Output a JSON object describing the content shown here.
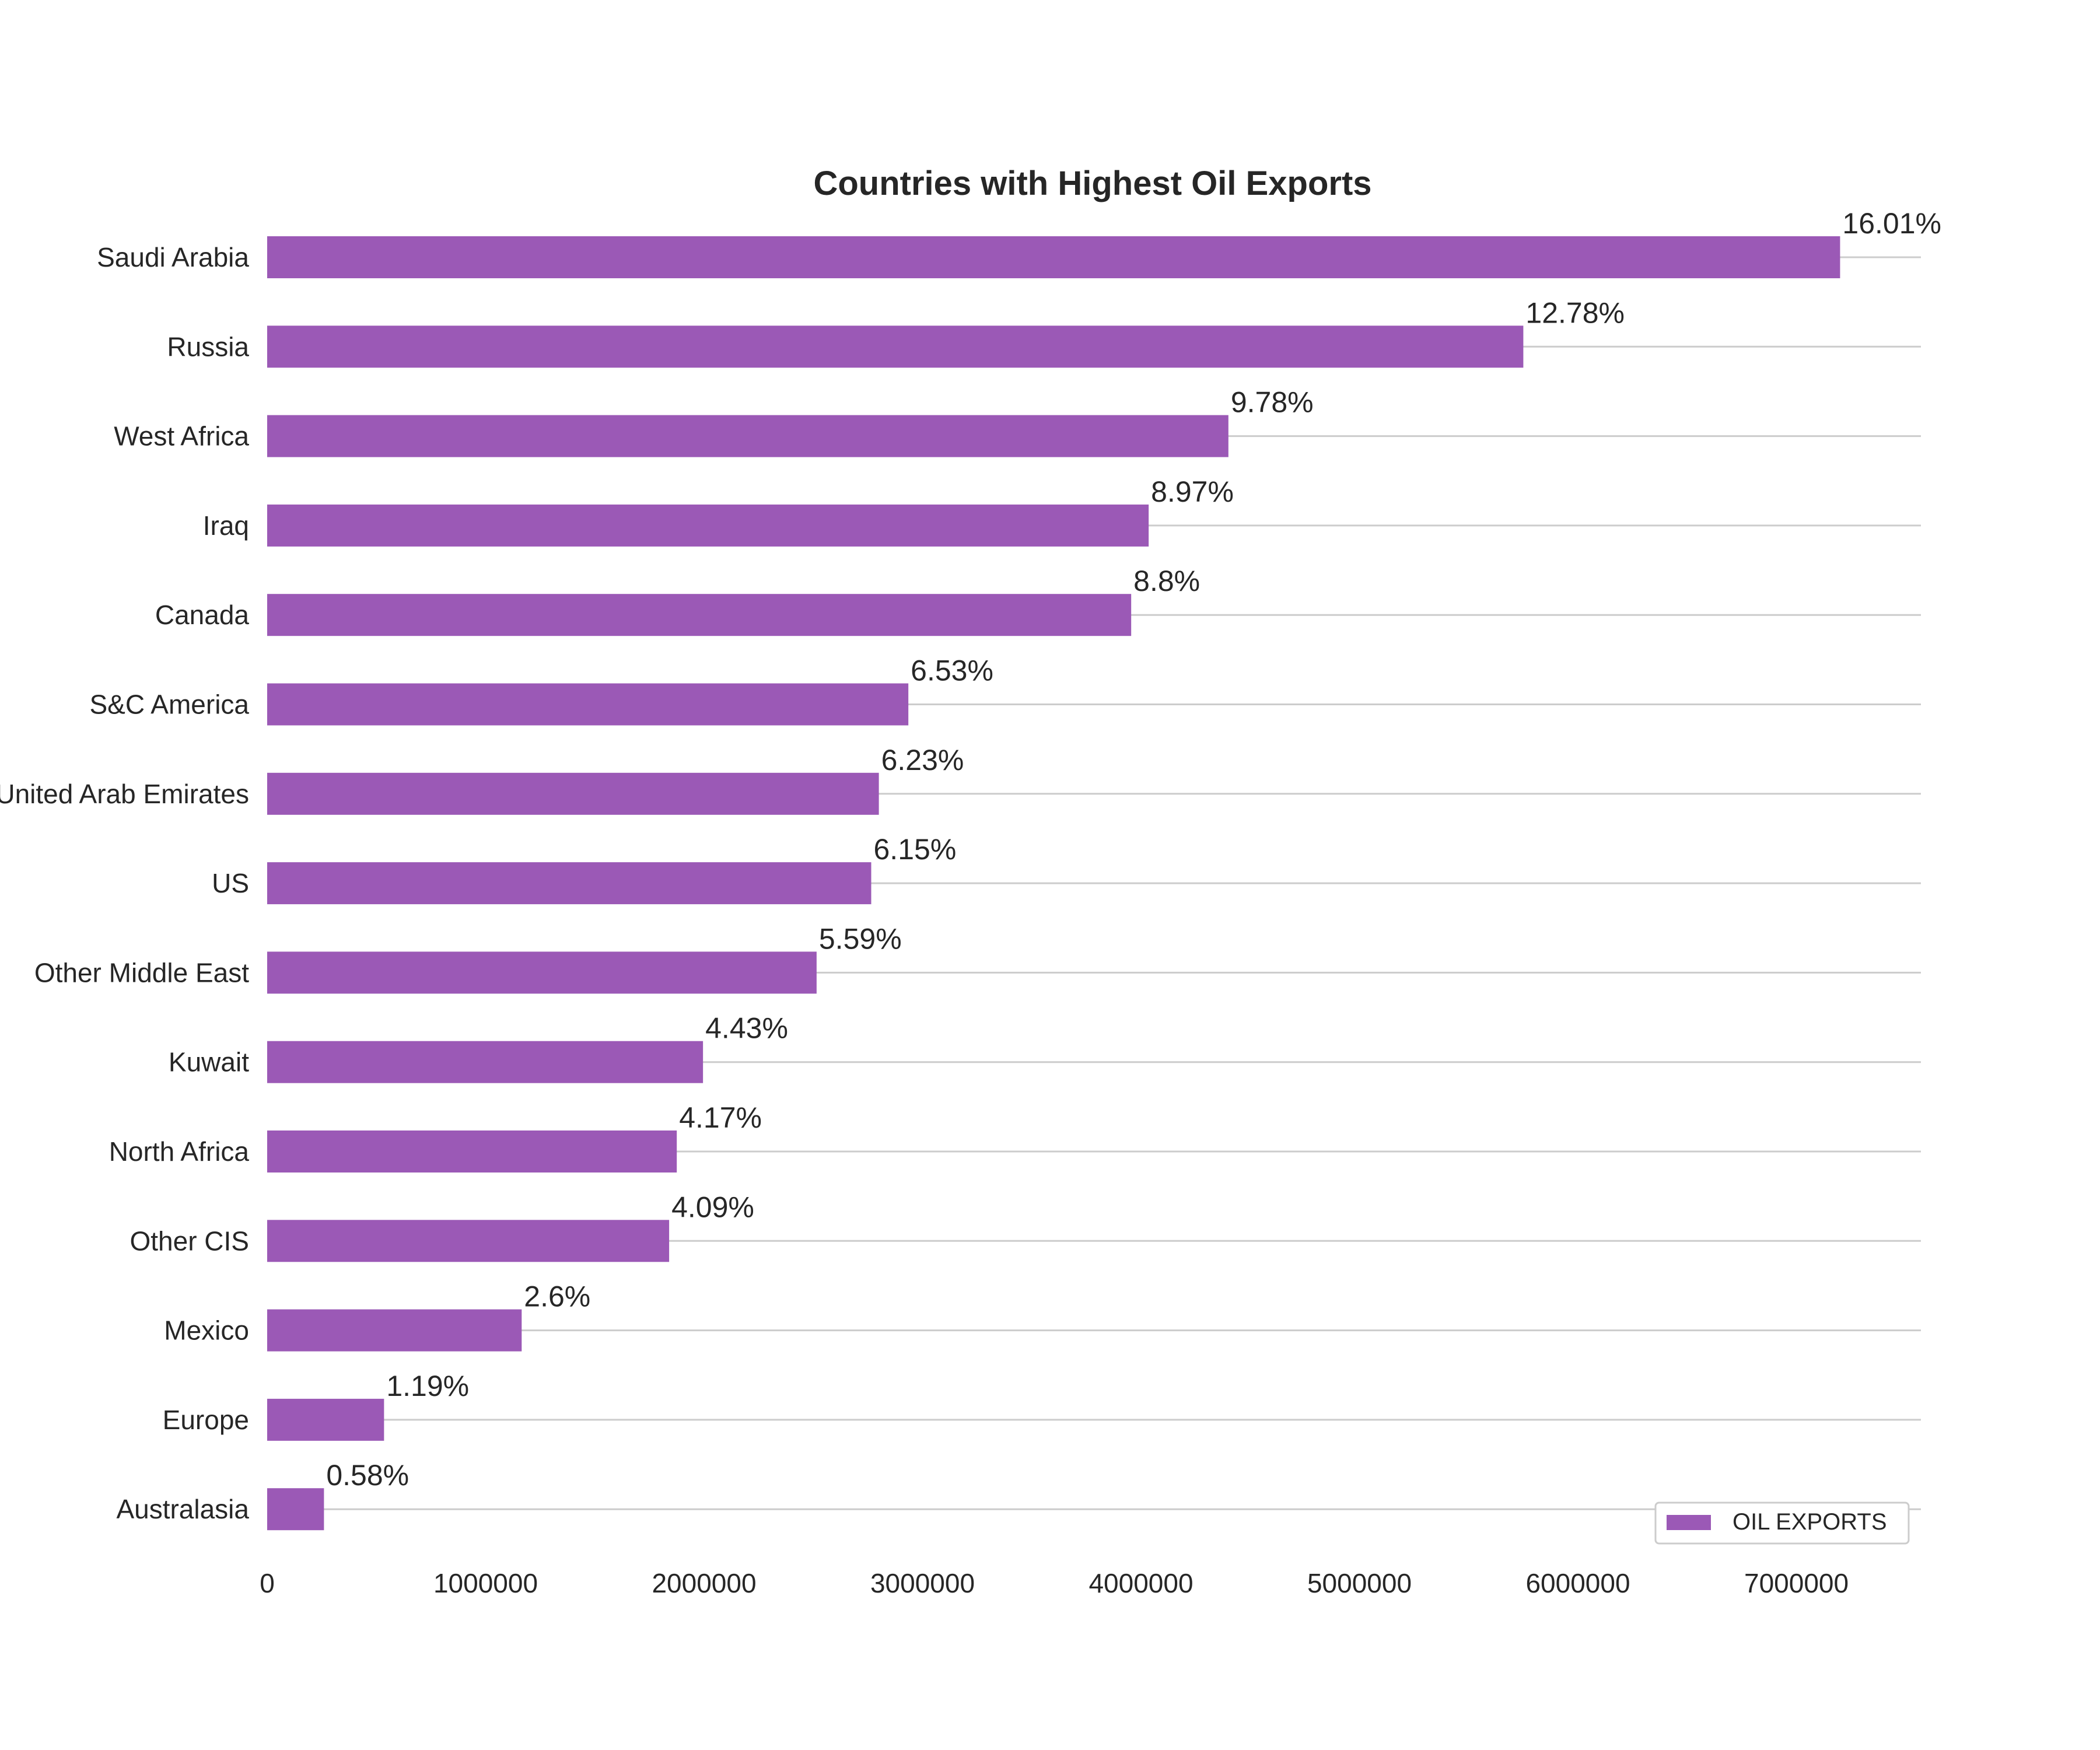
{
  "chart_data": {
    "type": "bar",
    "orientation": "horizontal",
    "title": "Countries with Highest Oil Exports",
    "xlabel": "",
    "ylabel": "",
    "categories": [
      "Saudi Arabia",
      "Russia",
      "West Africa",
      "Iraq",
      "Canada",
      "S&C America",
      "United Arab Emirates",
      "US",
      "Other Middle East",
      "Kuwait",
      "North Africa",
      "Other CIS",
      "Mexico",
      "Europe",
      "Australasia"
    ],
    "series": [
      {
        "name": "OIL EXPORTS",
        "values": [
          7200000,
          5750000,
          4400000,
          4035000,
          3955000,
          2935000,
          2800000,
          2765000,
          2515000,
          1995000,
          1875000,
          1840000,
          1165000,
          535000,
          260000
        ],
        "labels": [
          "16.01%",
          "12.78%",
          "9.78%",
          "8.97%",
          "8.8%",
          "6.53%",
          "6.23%",
          "6.15%",
          "5.59%",
          "4.43%",
          "4.17%",
          "4.09%",
          "2.6%",
          "1.19%",
          "0.58%"
        ]
      }
    ],
    "xticks": [
      0,
      1000000,
      2000000,
      3000000,
      4000000,
      5000000,
      6000000,
      7000000
    ],
    "xtick_labels": [
      "0",
      "1000000",
      "2000000",
      "3000000",
      "4000000",
      "5000000",
      "6000000",
      "7000000"
    ],
    "xlim": [
      0,
      7570000
    ],
    "grid": "horizontal",
    "legend": {
      "entries": [
        "OIL EXPORTS"
      ],
      "placement": "lower-right"
    },
    "colors": {
      "bar": "#9b59b6",
      "grid": "#cccccc",
      "text": "#262626",
      "legend_border": "#cccccc"
    }
  }
}
